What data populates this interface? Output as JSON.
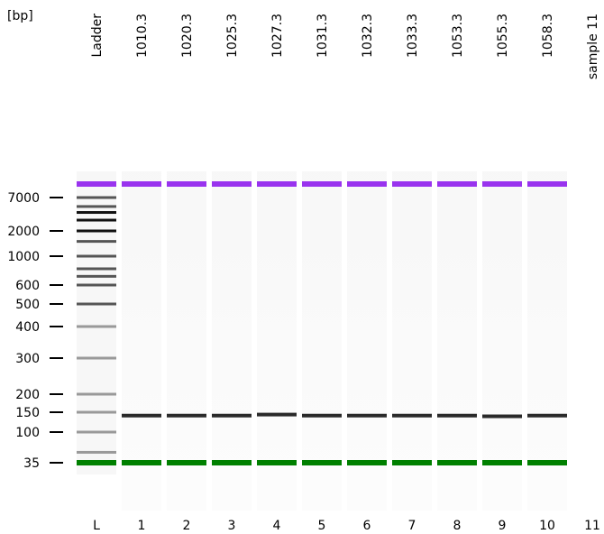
{
  "chart_data": {
    "type": "gel-electrophoresis",
    "unit": "[bp]",
    "y_axis_ticks": [
      7000,
      2000,
      1000,
      600,
      500,
      400,
      300,
      200,
      150,
      100,
      35
    ],
    "ladder": {
      "column_label": "Ladder",
      "lane_number": "L",
      "bands_bp": [
        7000,
        5000,
        4000,
        3000,
        2000,
        1500,
        1000,
        800,
        700,
        600,
        500,
        400,
        300,
        200,
        150,
        100,
        50,
        35,
        10380
      ]
    },
    "upper_marker_bp": 10380,
    "lower_marker_bp": 35,
    "samples": [
      {
        "lane": "1",
        "label": "1010.3",
        "band_bp": 140
      },
      {
        "lane": "2",
        "label": "1020.3",
        "band_bp": 140
      },
      {
        "lane": "3",
        "label": "1025.3",
        "band_bp": 140
      },
      {
        "lane": "4",
        "label": "1027.3",
        "band_bp": 143
      },
      {
        "lane": "5",
        "label": "1031.3",
        "band_bp": 140
      },
      {
        "lane": "6",
        "label": "1032.3",
        "band_bp": 140
      },
      {
        "lane": "7",
        "label": "1033.3",
        "band_bp": 140
      },
      {
        "lane": "8",
        "label": "1053.3",
        "band_bp": 140
      },
      {
        "lane": "9",
        "label": "1055.3",
        "band_bp": 138
      },
      {
        "lane": "10",
        "label": "1058.3",
        "band_bp": 140
      },
      {
        "lane": "11",
        "label": "sample 11",
        "band_bp": null
      }
    ],
    "colors": {
      "upper_marker": "#9933ee",
      "lower_marker": "#008000",
      "sample_band": "#2a2a2a",
      "background": "#ffffff"
    }
  }
}
